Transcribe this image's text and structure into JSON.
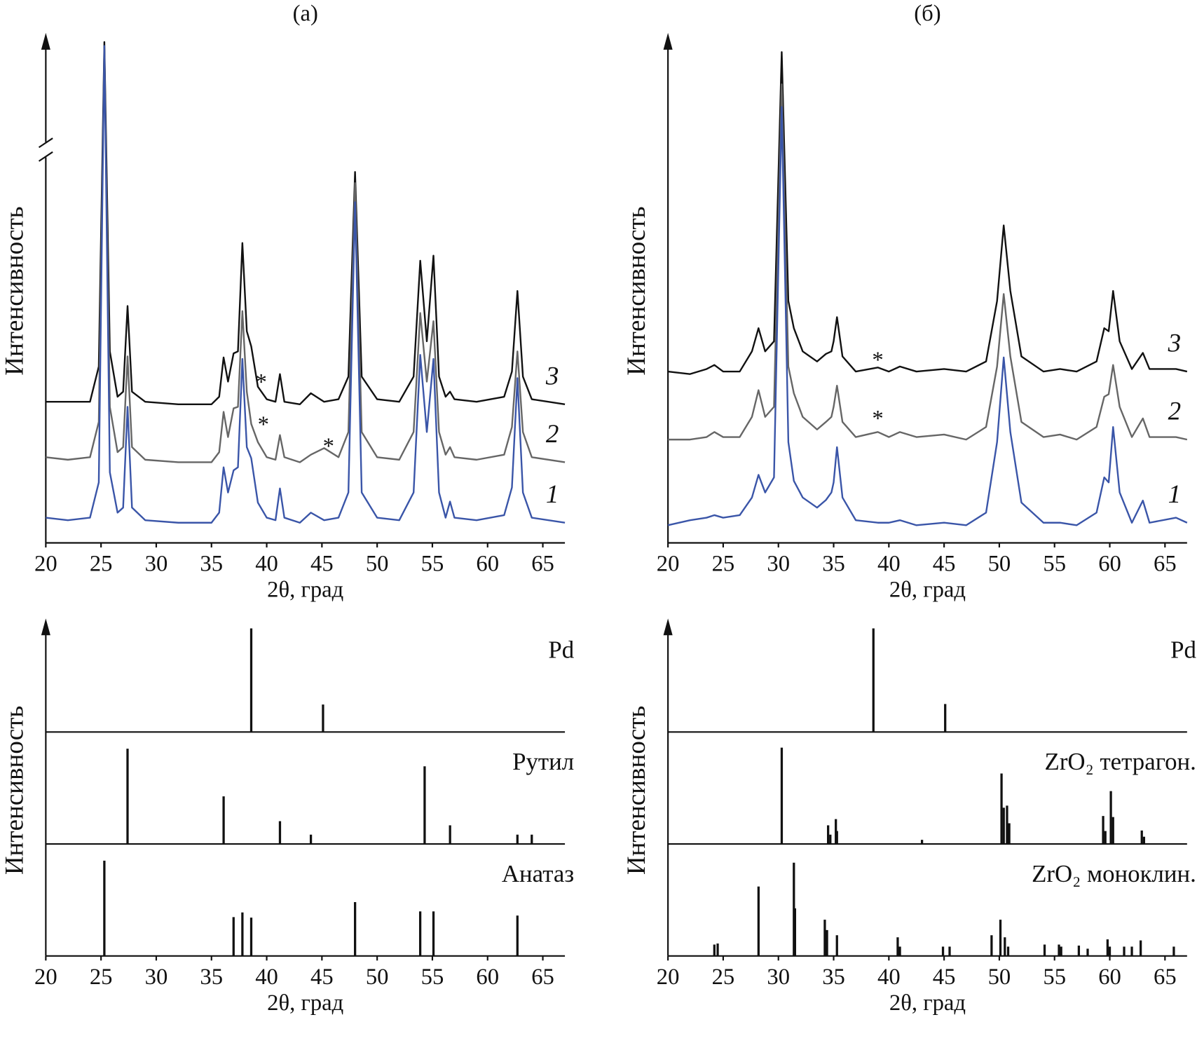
{
  "chart_data": [
    {
      "type": "line",
      "title": "(а)",
      "xlabel": "2θ, град",
      "ylabel": "Интенсивность",
      "xlim": [
        20,
        67
      ],
      "xticks": [
        20,
        25,
        30,
        35,
        40,
        45,
        50,
        55,
        60,
        65
      ],
      "ylim": [
        0,
        100
      ],
      "x": [
        20,
        22,
        24,
        24.8,
        25.3,
        25.8,
        26.5,
        27.0,
        27.4,
        27.8,
        29,
        32,
        35,
        35.7,
        36.1,
        36.5,
        37.0,
        37.4,
        37.8,
        38.2,
        38.6,
        39.2,
        40,
        40.8,
        41.2,
        41.6,
        43,
        44.0,
        45.2,
        46.5,
        47.4,
        48.0,
        48.6,
        50,
        52,
        53.3,
        53.9,
        54.5,
        55.1,
        55.6,
        56.2,
        56.6,
        57.0,
        59,
        61.5,
        62.2,
        62.7,
        63.2,
        64,
        67
      ],
      "series": [
        {
          "name": "1",
          "color": "#3a55a8",
          "values": [
            5,
            4.5,
            5,
            12,
            98.6,
            14,
            6,
            7,
            27,
            7,
            4.5,
            4,
            4,
            6,
            15,
            10,
            14.4,
            15,
            36.5,
            19,
            16.8,
            8,
            5,
            4.5,
            10.8,
            5,
            4,
            6,
            4.5,
            5,
            10,
            67.6,
            10,
            5,
            4.5,
            10,
            37.3,
            22,
            36.5,
            10,
            5,
            8.2,
            5,
            4.5,
            5.5,
            11,
            32.7,
            10,
            5,
            4
          ]
        },
        {
          "name": "2",
          "color": "#666666",
          "values": [
            17,
            16.5,
            17,
            24,
            98,
            27,
            18,
            19,
            37,
            19,
            16.5,
            16,
            16,
            18,
            26,
            21,
            26.7,
            27,
            46,
            30,
            23.6,
            20,
            17,
            16.5,
            21.4,
            17,
            16,
            17.5,
            18.8,
            17,
            22,
            71.4,
            22,
            17,
            16.5,
            22,
            45.6,
            32,
            44,
            22,
            17.5,
            19,
            17,
            16.5,
            17.5,
            23,
            38,
            22,
            17,
            16
          ]
        },
        {
          "name": "3",
          "color": "#111111",
          "values": [
            28,
            28,
            28,
            35,
            99.4,
            38,
            29,
            30,
            47,
            30,
            28,
            27.5,
            27.5,
            29,
            36.8,
            32,
            37.6,
            38,
            59.5,
            42,
            39,
            31,
            28.5,
            28,
            33.5,
            28,
            27.5,
            29.7,
            28,
            28.5,
            33,
            73.6,
            33,
            28.5,
            28,
            33,
            56,
            40,
            57,
            33,
            29,
            30,
            28.5,
            28,
            29,
            34,
            50,
            33,
            28.5,
            27.5
          ]
        }
      ],
      "annotations": [
        {
          "text": "*",
          "x": 39.5,
          "y": 32.4
        },
        {
          "text": "*",
          "x": 39.7,
          "y": 24
        },
        {
          "text": "*",
          "x": 45.6,
          "y": 19.7
        }
      ]
    },
    {
      "type": "line",
      "title": "(б)",
      "xlabel": "2θ, град",
      "ylabel": "Интенсивность",
      "xlim": [
        20,
        67
      ],
      "xticks": [
        20,
        25,
        30,
        35,
        40,
        45,
        50,
        55,
        60,
        65
      ],
      "ylim": [
        0,
        100
      ],
      "x": [
        20,
        22,
        23.5,
        24.2,
        25,
        26.5,
        27.6,
        28.2,
        28.8,
        29.6,
        30.3,
        30.9,
        31.4,
        32.2,
        33.5,
        34.3,
        34.8,
        35.0,
        35.3,
        35.8,
        37,
        39.0,
        40,
        41,
        42.5,
        45,
        47,
        48.8,
        49.8,
        50.4,
        51.0,
        52,
        54,
        55.5,
        57,
        58.8,
        59.5,
        59.9,
        60.3,
        60.9,
        62,
        63.0,
        63.6,
        66,
        67
      ],
      "series": [
        {
          "name": "1",
          "color": "#3a55a8",
          "values": [
            3.5,
            4.5,
            5,
            5.5,
            5,
            5.5,
            9,
            13.5,
            10,
            13,
            86.5,
            20,
            12.3,
            9,
            7,
            8.5,
            10,
            12,
            19,
            9,
            4.5,
            4,
            4,
            4.5,
            3.5,
            4,
            3.5,
            6,
            20,
            36.8,
            22,
            8,
            4,
            4,
            3.5,
            6,
            13,
            12,
            23,
            10,
            4,
            8.4,
            4,
            5,
            4
          ]
        },
        {
          "name": "2",
          "color": "#666666",
          "values": [
            20.5,
            20.5,
            21,
            22,
            21,
            21,
            25,
            30.3,
            25,
            27,
            91,
            35,
            29.7,
            25,
            22.5,
            24,
            25,
            27,
            31.2,
            24,
            21,
            22,
            21,
            22,
            21,
            21.5,
            20.5,
            23,
            35,
            49.4,
            37,
            24,
            21,
            21.5,
            20.5,
            23,
            29,
            29.5,
            35.3,
            27,
            21,
            24.7,
            21,
            21,
            20.5
          ]
        },
        {
          "name": "3",
          "color": "#111111",
          "values": [
            34,
            33.5,
            34.5,
            35.3,
            34,
            34,
            38,
            42.6,
            38,
            40,
            97.4,
            48,
            42.6,
            38,
            36,
            37.5,
            38,
            40,
            44.8,
            37,
            34,
            34.8,
            34,
            35,
            34,
            34.5,
            34,
            36,
            48,
            63,
            50,
            37,
            34,
            34.5,
            34,
            36,
            42.6,
            42,
            50,
            40,
            34.5,
            37.7,
            34.5,
            34.5,
            34
          ]
        }
      ],
      "annotations": [
        {
          "text": "*",
          "x": 39.0,
          "y": 36.8
        },
        {
          "text": "*",
          "x": 39.0,
          "y": 25.2
        }
      ]
    },
    {
      "type": "stick",
      "xlabel": "2θ, град",
      "ylabel": "Интенсивность",
      "xlim": [
        20,
        67
      ],
      "xticks": [
        20,
        25,
        30,
        35,
        40,
        45,
        50,
        55,
        60,
        65
      ],
      "ylim": [
        0,
        100
      ],
      "series": [
        {
          "name": "Pd",
          "color": "#111111",
          "x": [
            38.6,
            45.1
          ],
          "values": [
            100,
            26.5
          ]
        },
        {
          "name": "Рутил",
          "color": "#111111",
          "x": [
            27.4,
            36.1,
            41.2,
            44.0,
            54.3,
            56.6,
            62.7,
            64.0
          ],
          "values": [
            92,
            46,
            22,
            9,
            75,
            18,
            9,
            9
          ]
        },
        {
          "name": "Анатаз",
          "color": "#111111",
          "x": [
            25.3,
            37.0,
            37.8,
            38.6,
            48.0,
            53.9,
            55.1,
            62.7
          ],
          "values": [
            92,
            37.5,
            42,
            37,
            52,
            43,
            43,
            39
          ]
        }
      ]
    },
    {
      "type": "stick",
      "xlabel": "2θ, град",
      "ylabel": "Интенсивность",
      "xlim": [
        20,
        67
      ],
      "xticks": [
        20,
        25,
        30,
        35,
        40,
        45,
        50,
        55,
        60,
        65
      ],
      "ylim": [
        0,
        100
      ],
      "series": [
        {
          "name": "Pd",
          "color": "#111111",
          "x": [
            38.6,
            45.1
          ],
          "values": [
            100,
            27
          ]
        },
        {
          "name": "ZrO₂ тетрагон.",
          "color": "#111111",
          "x": [
            30.3,
            34.5,
            34.7,
            35.2,
            35.3,
            43.0,
            50.2,
            50.4,
            50.7,
            50.9,
            59.4,
            59.6,
            60.1,
            60.3,
            62.9,
            63.1
          ],
          "values": [
            93,
            18,
            9,
            24,
            12.5,
            4,
            68,
            35,
            37,
            20,
            27,
            12.5,
            51,
            26,
            13,
            7
          ]
        },
        {
          "name": "ZrO₂ моноклин.",
          "color": "#111111",
          "x": [
            24.2,
            24.5,
            28.2,
            31.4,
            31.5,
            34.2,
            34.4,
            35.3,
            40.8,
            41.0,
            44.9,
            45.5,
            49.3,
            50.1,
            50.5,
            50.8,
            54.1,
            55.4,
            55.6,
            57.2,
            58.0,
            59.8,
            60.0,
            61.3,
            62.0,
            62.8,
            65.8
          ],
          "values": [
            11,
            12,
            67,
            90,
            46,
            35,
            25,
            20,
            18,
            9,
            9,
            9,
            20,
            35,
            18,
            9,
            11,
            11,
            9,
            10,
            7,
            16,
            9,
            9,
            9,
            15,
            9
          ]
        }
      ]
    }
  ]
}
